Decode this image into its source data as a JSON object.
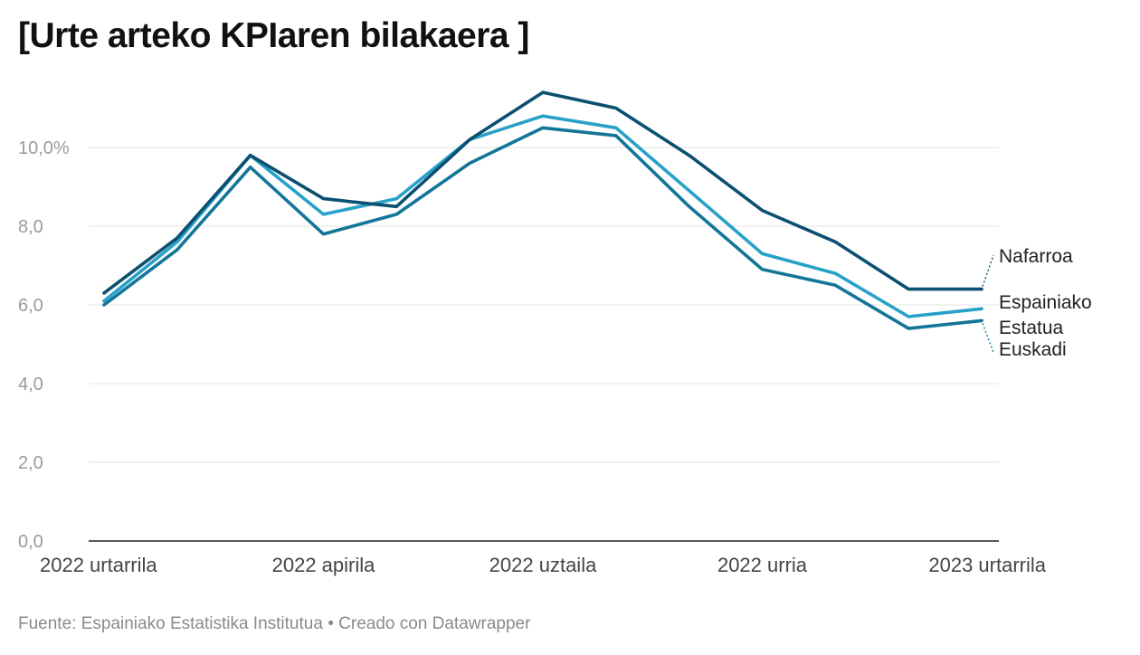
{
  "title": "[Urte arteko KPIaren bilakaera ]",
  "footer": {
    "source": "Fuente: Espainiako Estatistika Institutua",
    "separator": "•",
    "credit": "Creado con Datawrapper"
  },
  "chart_data": {
    "type": "line",
    "title": "[Urte arteko KPIaren bilakaera ]",
    "xlabel": "",
    "ylabel": "",
    "ylim": [
      0,
      11.4
    ],
    "yticks": [
      0,
      2,
      4,
      6,
      8,
      10
    ],
    "ytick_labels": [
      "0,0",
      "2,0",
      "4,0",
      "6,0",
      "8,0",
      "10,0%"
    ],
    "x": [
      "2022-01",
      "2022-02",
      "2022-03",
      "2022-04",
      "2022-05",
      "2022-06",
      "2022-07",
      "2022-08",
      "2022-09",
      "2022-10",
      "2022-11",
      "2022-12",
      "2023-01"
    ],
    "xticks": [
      "2022-01",
      "2022-04",
      "2022-07",
      "2022-10",
      "2023-01"
    ],
    "xtick_labels": [
      "2022 urtarrila",
      "2022 apirila",
      "2022 uztaila",
      "2022 urria",
      "2023 urtarrila"
    ],
    "grid": true,
    "legend": "direct labels at line ends",
    "series": [
      {
        "name": "Nafarroa",
        "label_lines": [
          "Nafarroa"
        ],
        "color": "#0b4f71",
        "values": [
          6.3,
          7.7,
          9.8,
          8.7,
          8.5,
          10.2,
          11.4,
          11.0,
          9.8,
          8.4,
          7.6,
          6.4,
          6.4
        ]
      },
      {
        "name": "Espainiako Estatua",
        "label_lines": [
          "Espainiako",
          "Estatua"
        ],
        "color": "#28a1c9",
        "values": [
          6.1,
          7.6,
          9.8,
          8.3,
          8.7,
          10.2,
          10.8,
          10.5,
          8.9,
          7.3,
          6.8,
          5.7,
          5.9
        ]
      },
      {
        "name": "Euskadi",
        "label_lines": [
          "Euskadi"
        ],
        "color": "#137699",
        "values": [
          6.0,
          7.4,
          9.5,
          7.8,
          8.3,
          9.6,
          10.5,
          10.3,
          8.5,
          6.9,
          6.5,
          5.4,
          5.6
        ]
      }
    ]
  }
}
